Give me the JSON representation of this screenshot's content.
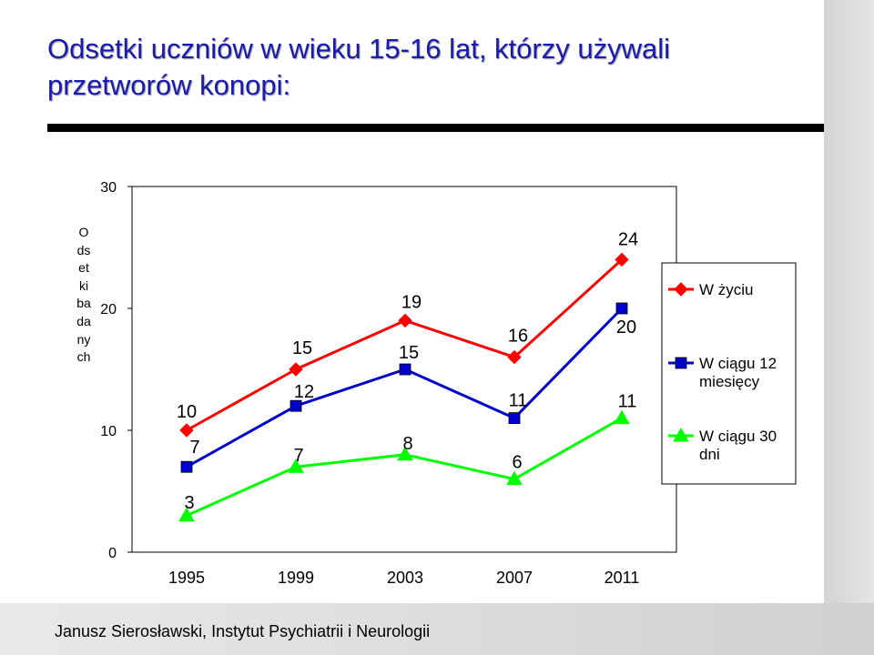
{
  "title": "Odsetki uczniów w wieku 15-16 lat, którzy używali przetworów konopi:",
  "footer": "Janusz Sierosławski, Instytut Psychiatrii i Neurologii",
  "chart_data": {
    "type": "line",
    "ylabel": "Odsetki badanych",
    "xlabel": "",
    "categories": [
      "1995",
      "1999",
      "2003",
      "2007",
      "2011"
    ],
    "ylim": [
      0,
      30
    ],
    "yticks": [
      0,
      10,
      20,
      30
    ],
    "legend_position": "right",
    "grid": false,
    "series": [
      {
        "name": "W życiu",
        "values": [
          10,
          15,
          19,
          16,
          24
        ],
        "color": "#ff0000",
        "marker": "diamond"
      },
      {
        "name": "W ciągu 12 miesięcy",
        "values": [
          7,
          12,
          15,
          11,
          20
        ],
        "color": "#0000cc",
        "marker": "square"
      },
      {
        "name": "W ciągu 30 dni",
        "values": [
          3,
          7,
          8,
          6,
          11
        ],
        "color": "#00ff00",
        "marker": "triangle"
      }
    ]
  }
}
